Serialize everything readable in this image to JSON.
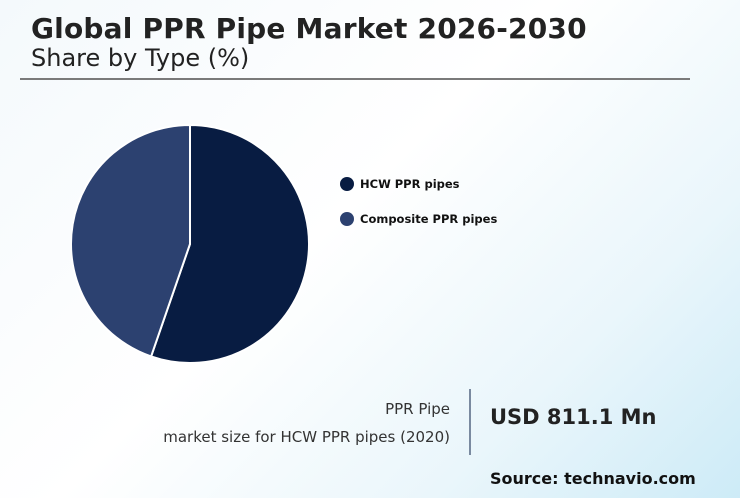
{
  "header": {
    "title": "Global PPR Pipe Market 2026-2030",
    "subtitle": "Share by Type (%)"
  },
  "legend": {
    "items": [
      {
        "label": "HCW PPR pipes",
        "color": "#081c42"
      },
      {
        "label": "Composite PPR pipes",
        "color": "#2c4170"
      }
    ]
  },
  "stat": {
    "label_line1": "PPR Pipe",
    "label_line2": "market size for HCW PPR pipes (2020)",
    "value": "USD 811.1 Mn"
  },
  "footer": {
    "source": "Source: technavio.com"
  },
  "chart_data": {
    "type": "pie",
    "title": "Global PPR Pipe Market 2026-2030",
    "subtitle": "Share by Type (%)",
    "categories": [
      "HCW PPR pipes",
      "Composite PPR pipes"
    ],
    "values": [
      55.3,
      44.7
    ],
    "colors": [
      "#081c42",
      "#2c4170"
    ],
    "start_angle_deg": 0,
    "direction": "clockwise",
    "legend_position": "right"
  }
}
